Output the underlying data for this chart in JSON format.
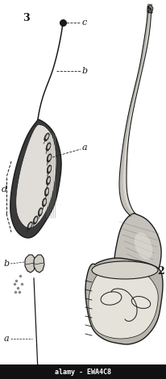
{
  "bg_color": "#ffffff",
  "line_color": "#1a1a1a",
  "shade_dark": "#5a5a5a",
  "shade_mid": "#9a9a9a",
  "shade_light": "#d0d0d0",
  "shade_lighter": "#e8e8e8",
  "watermark_text": "alamy - EWA4C8",
  "watermark_bg": "#111111",
  "watermark_fg": "#ffffff",
  "labels": {
    "fig3_num": "3",
    "label_c": "c",
    "label_b": "b",
    "label_a": "a",
    "label_d": "d",
    "stamen_b": "b",
    "stamen_a": "a",
    "fig2_num": "2"
  }
}
